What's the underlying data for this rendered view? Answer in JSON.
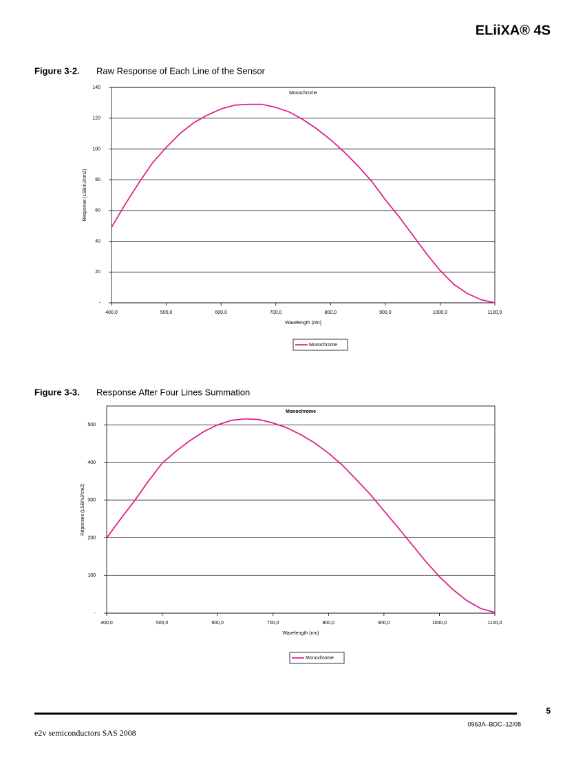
{
  "header": {
    "title": "ELiiXA® 4S"
  },
  "figures": [
    {
      "label": "Figure 3-2.",
      "caption": "Raw Response of Each Line of the Sensor"
    },
    {
      "label": "Figure 3-3.",
      "caption": "Response After Four Lines Summation"
    }
  ],
  "chart_data": [
    {
      "type": "line",
      "title": "Monochrome",
      "x_label": "Wavelength (nm)",
      "y_label": "Response (LSB/nJ/cm2)",
      "x": [
        400,
        425,
        450,
        475,
        500,
        525,
        550,
        575,
        600,
        625,
        650,
        675,
        700,
        725,
        750,
        775,
        800,
        825,
        850,
        875,
        900,
        925,
        950,
        975,
        1000,
        1025,
        1050,
        1075,
        1100
      ],
      "series": [
        {
          "name": "Monochrome",
          "color": "#e0208c",
          "values": [
            49,
            64,
            78,
            91,
            101,
            110,
            117,
            122,
            126,
            128.5,
            129,
            129,
            127,
            124,
            119,
            113,
            106,
            98,
            89,
            79,
            67,
            56,
            44,
            32,
            21,
            12,
            6,
            2,
            0
          ]
        }
      ],
      "xlim": [
        400,
        1100
      ],
      "xticks": [
        {
          "value": 400,
          "label": "400,0"
        },
        {
          "value": 500,
          "label": "500,0"
        },
        {
          "value": 600,
          "label": "600,0"
        },
        {
          "value": 700,
          "label": "700,0"
        },
        {
          "value": 800,
          "label": "800,0"
        },
        {
          "value": 900,
          "label": "900,0"
        },
        {
          "value": 1000,
          "label": "1000,0"
        },
        {
          "value": 1100,
          "label": "1100,0"
        }
      ],
      "ylim": [
        0,
        140
      ],
      "yticks": [
        {
          "value": 0,
          "label": "-"
        },
        20,
        40,
        60,
        80,
        100,
        120,
        140
      ],
      "grid": true,
      "legend": "bottom"
    },
    {
      "type": "line",
      "title": "Monochrome",
      "x_label": "Wavelength (nm)",
      "y_label": "Réponses (LSB/nJ/cm2)",
      "x": [
        400,
        425,
        450,
        475,
        500,
        525,
        550,
        575,
        600,
        625,
        650,
        675,
        700,
        725,
        750,
        775,
        800,
        825,
        850,
        875,
        900,
        925,
        950,
        975,
        1000,
        1025,
        1050,
        1075,
        1100
      ],
      "series": [
        {
          "name": "Monochrome",
          "color": "#e0208c",
          "values": [
            200,
            250,
            298,
            350,
            398,
            430,
            458,
            482,
            500,
            512,
            516,
            514,
            505,
            492,
            474,
            452,
            425,
            393,
            355,
            316,
            272,
            228,
            183,
            138,
            97,
            62,
            33,
            12,
            2
          ]
        }
      ],
      "xlim": [
        400,
        1100
      ],
      "xticks": [
        {
          "value": 400,
          "label": "400,0"
        },
        {
          "value": 500,
          "label": "500,0"
        },
        {
          "value": 600,
          "label": "600,0"
        },
        {
          "value": 700,
          "label": "700,0"
        },
        {
          "value": 800,
          "label": "800,0"
        },
        {
          "value": 900,
          "label": "900,0"
        },
        {
          "value": 1000,
          "label": "1000,0"
        },
        {
          "value": 1100,
          "label": "1100,0"
        }
      ],
      "ylim": [
        0,
        550
      ],
      "yticks": [
        {
          "value": 0,
          "label": "-"
        },
        100,
        200,
        300,
        400,
        500
      ],
      "grid": true,
      "legend": "bottom"
    }
  ],
  "footer": {
    "page": "5",
    "doc_id": "0963A–BDC–12/08",
    "copyright": "e2v semiconductors SAS 2008"
  }
}
